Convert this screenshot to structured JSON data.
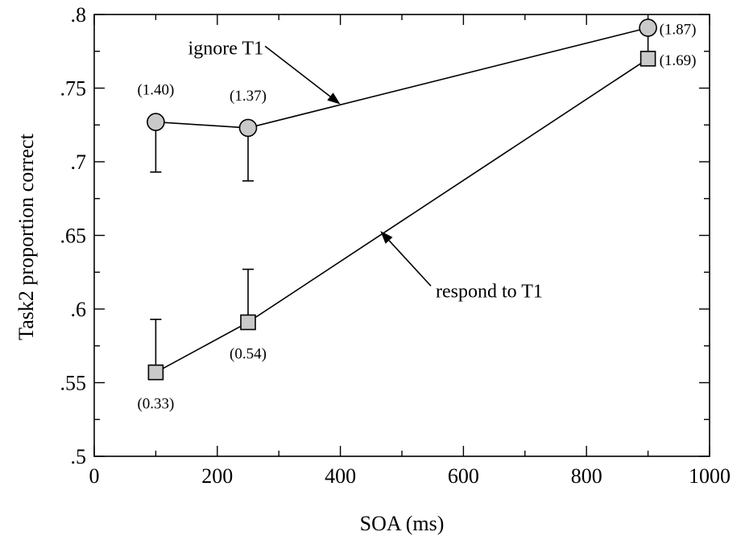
{
  "chart_data": {
    "type": "line",
    "xlabel": "SOA (ms)",
    "ylabel": "Task2 proportion correct",
    "xlim": [
      0,
      1000
    ],
    "ylim": [
      0.5,
      0.8
    ],
    "x_ticks": [
      0,
      200,
      400,
      600,
      800,
      1000
    ],
    "x_tick_labels": [
      "0",
      "200",
      "400",
      "600",
      "800",
      "1000"
    ],
    "y_ticks": [
      0.5,
      0.55,
      0.6,
      0.65,
      0.7,
      0.75,
      0.8
    ],
    "y_tick_labels": [
      ".5",
      ".55",
      ".6",
      ".65",
      ".7",
      ".75",
      ".8"
    ],
    "grid": false,
    "legend": "none",
    "series": [
      {
        "name": "ignore T1",
        "marker": "circle",
        "x": [
          100,
          250,
          900
        ],
        "y": [
          0.727,
          0.723,
          0.791
        ],
        "error_low": [
          0.693,
          0.687,
          null
        ],
        "value_labels": [
          "(1.40)",
          "(1.37)",
          "(1.87)"
        ],
        "label_placement": [
          "above",
          "above",
          "right"
        ]
      },
      {
        "name": "respond to T1",
        "marker": "square",
        "x": [
          100,
          250,
          900
        ],
        "y": [
          0.557,
          0.591,
          0.77
        ],
        "error_high": [
          0.593,
          0.627,
          0.791
        ],
        "value_labels": [
          "(0.33)",
          "(0.54)",
          "(1.69)"
        ],
        "label_placement": [
          "below",
          "below",
          "right"
        ]
      }
    ],
    "annotations": [
      {
        "text": "ignore T1",
        "points_to_series": 0,
        "text_at": [
          275,
          0.773
        ],
        "arrow_to": [
          400,
          0.739
        ]
      },
      {
        "text": "respond to T1",
        "points_to_series": 1,
        "text_at": [
          555,
          0.608
        ],
        "arrow_to": [
          465,
          0.653
        ]
      }
    ]
  }
}
